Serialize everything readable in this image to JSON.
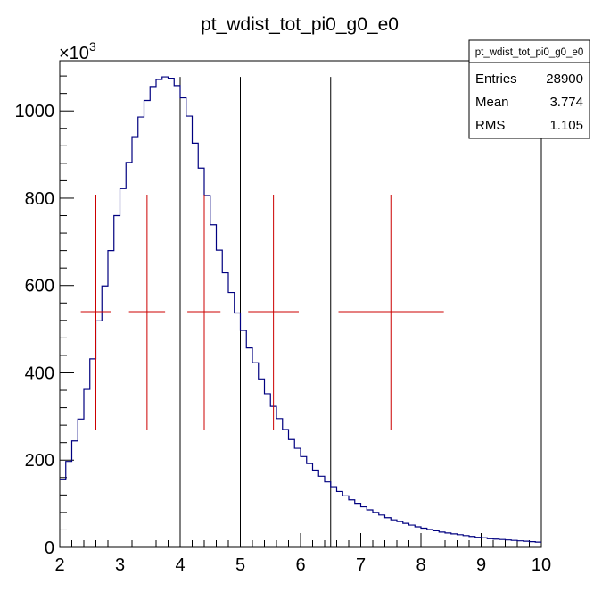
{
  "chart_data": {
    "type": "histogram",
    "title": "pt_wdist_tot_pi0_g0_e0",
    "xlabel": "",
    "ylabel": "",
    "y_multiplier": "×10",
    "y_multiplier_exp": "3",
    "xlim": [
      2,
      10
    ],
    "ylim": [
      0,
      1115
    ],
    "x_ticks": [
      "2",
      "3",
      "4",
      "5",
      "6",
      "7",
      "8",
      "9",
      "10"
    ],
    "y_ticks": [
      "0",
      "200",
      "400",
      "600",
      "800",
      "1000"
    ],
    "x_tick_values": [
      2,
      3,
      4,
      5,
      6,
      7,
      8,
      9,
      10
    ],
    "y_tick_values": [
      0,
      200,
      400,
      600,
      800,
      1000
    ],
    "bin_width": 0.1,
    "bin_start": 2.0,
    "series": [
      {
        "type": "histogram",
        "color": "#000080",
        "values": [
          156,
          197,
          244,
          294,
          362,
          432,
          519,
          599,
          680,
          760,
          822,
          882,
          941,
          986,
          1024,
          1056,
          1072,
          1078,
          1075,
          1058,
          1030,
          988,
          926,
          869,
          806,
          739,
          681,
          629,
          584,
          537,
          497,
          457,
          423,
          386,
          352,
          323,
          295,
          270,
          247,
          227,
          208,
          192,
          177,
          163,
          150,
          139,
          128,
          118,
          109,
          101,
          93,
          86,
          80,
          74,
          68,
          63,
          59,
          55,
          51,
          47,
          44,
          41,
          38,
          35,
          33,
          31,
          29,
          27,
          25,
          23,
          22,
          20,
          19,
          18,
          17,
          16,
          15,
          14,
          13,
          12
        ]
      }
    ],
    "vertical_lines": {
      "color": "#000000",
      "x": [
        3,
        4,
        5,
        6.5
      ],
      "y_top": 1078
    },
    "error_crosses": {
      "color": "#cc0000",
      "points": [
        {
          "x": 2.6,
          "xerr_low": 0.25,
          "xerr_high": 0.25,
          "y": 540,
          "y_low": 268,
          "y_high": 808
        },
        {
          "x": 3.45,
          "xerr_low": 0.3,
          "xerr_high": 0.3,
          "y": 540,
          "y_low": 268,
          "y_high": 808
        },
        {
          "x": 4.4,
          "xerr_low": 0.28,
          "xerr_high": 0.27,
          "y": 540,
          "y_low": 268,
          "y_high": 808
        },
        {
          "x": 5.55,
          "xerr_low": 0.42,
          "xerr_high": 0.42,
          "y": 540,
          "y_low": 268,
          "y_high": 808
        },
        {
          "x": 7.5,
          "xerr_low": 0.87,
          "xerr_high": 0.88,
          "y": 540,
          "y_low": 268,
          "y_high": 808
        }
      ]
    },
    "stats_box": {
      "title": "pt_wdist_tot_pi0_g0_e0",
      "rows": [
        {
          "label": "Entries",
          "value": "28900"
        },
        {
          "label": "Mean",
          "value": "3.774"
        },
        {
          "label": "RMS",
          "value": "1.105"
        }
      ]
    }
  }
}
